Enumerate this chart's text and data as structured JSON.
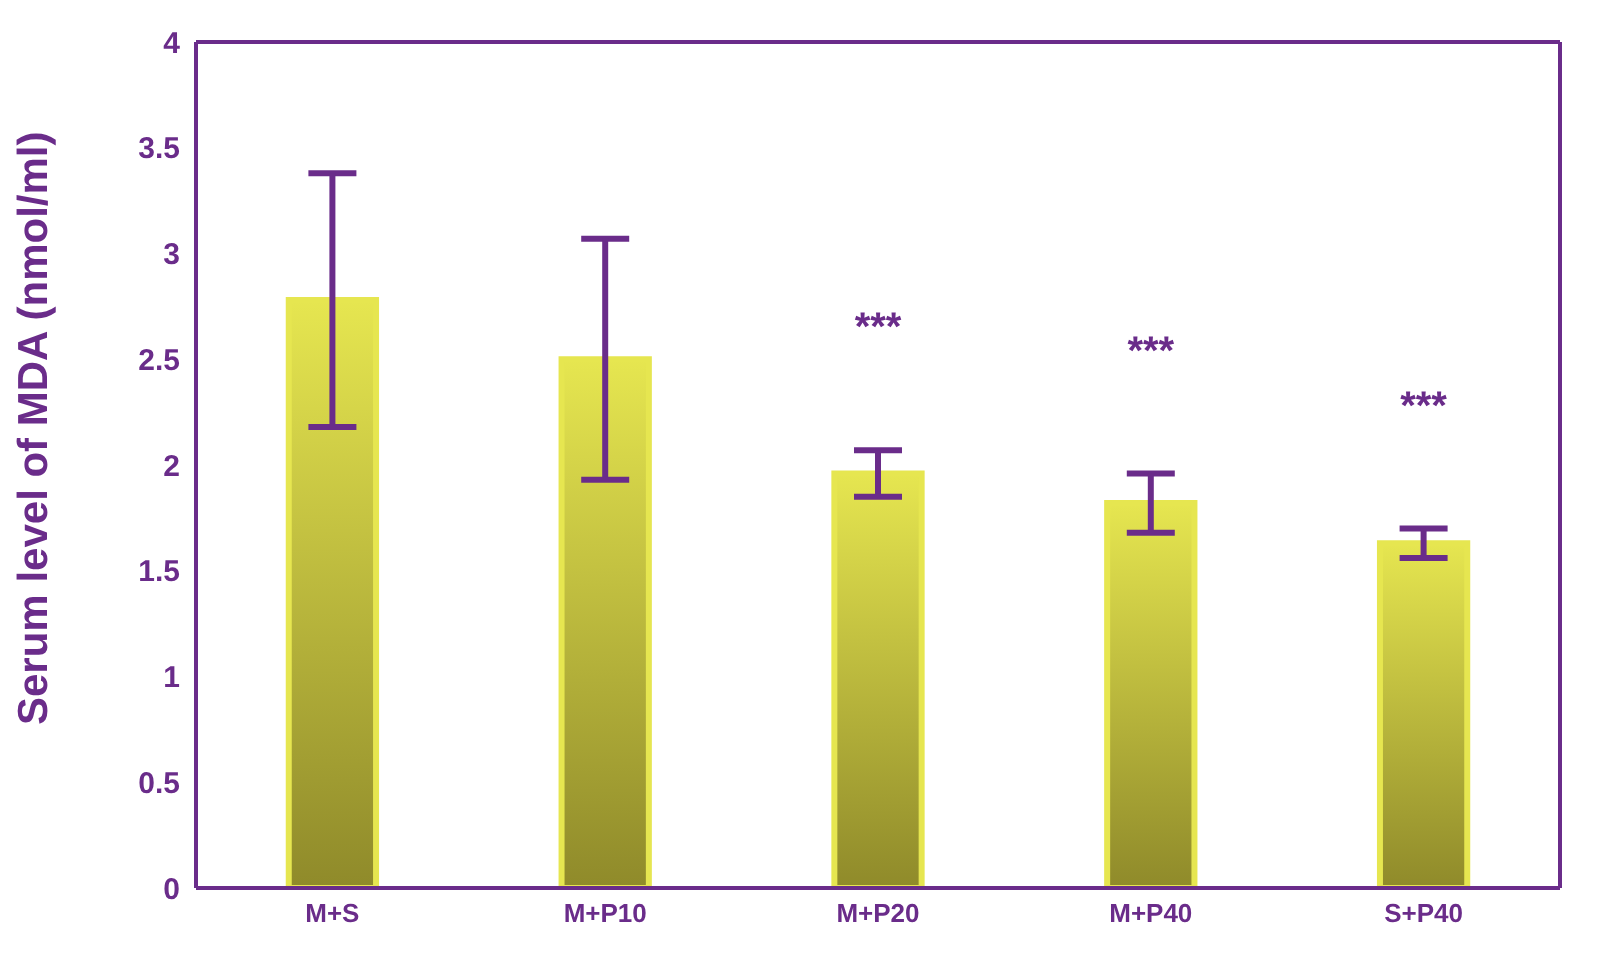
{
  "chart_data": {
    "type": "bar",
    "ylabel": "Serum level of MDA (nmol/ml)",
    "categories": [
      "M+S",
      "M+P10",
      "M+P20",
      "M+P40",
      "S+P40"
    ],
    "values": [
      2.78,
      2.5,
      1.96,
      1.82,
      1.63
    ],
    "errors": [
      0.6,
      0.57,
      0.11,
      0.14,
      0.07
    ],
    "color": "#e6e650",
    "ylim": [
      0,
      4
    ],
    "yticks": [
      0,
      0.5,
      1,
      1.5,
      2,
      2.5,
      3,
      3.5,
      4
    ],
    "grid": false,
    "annotations": [
      "***",
      "***",
      "***"
    ]
  }
}
